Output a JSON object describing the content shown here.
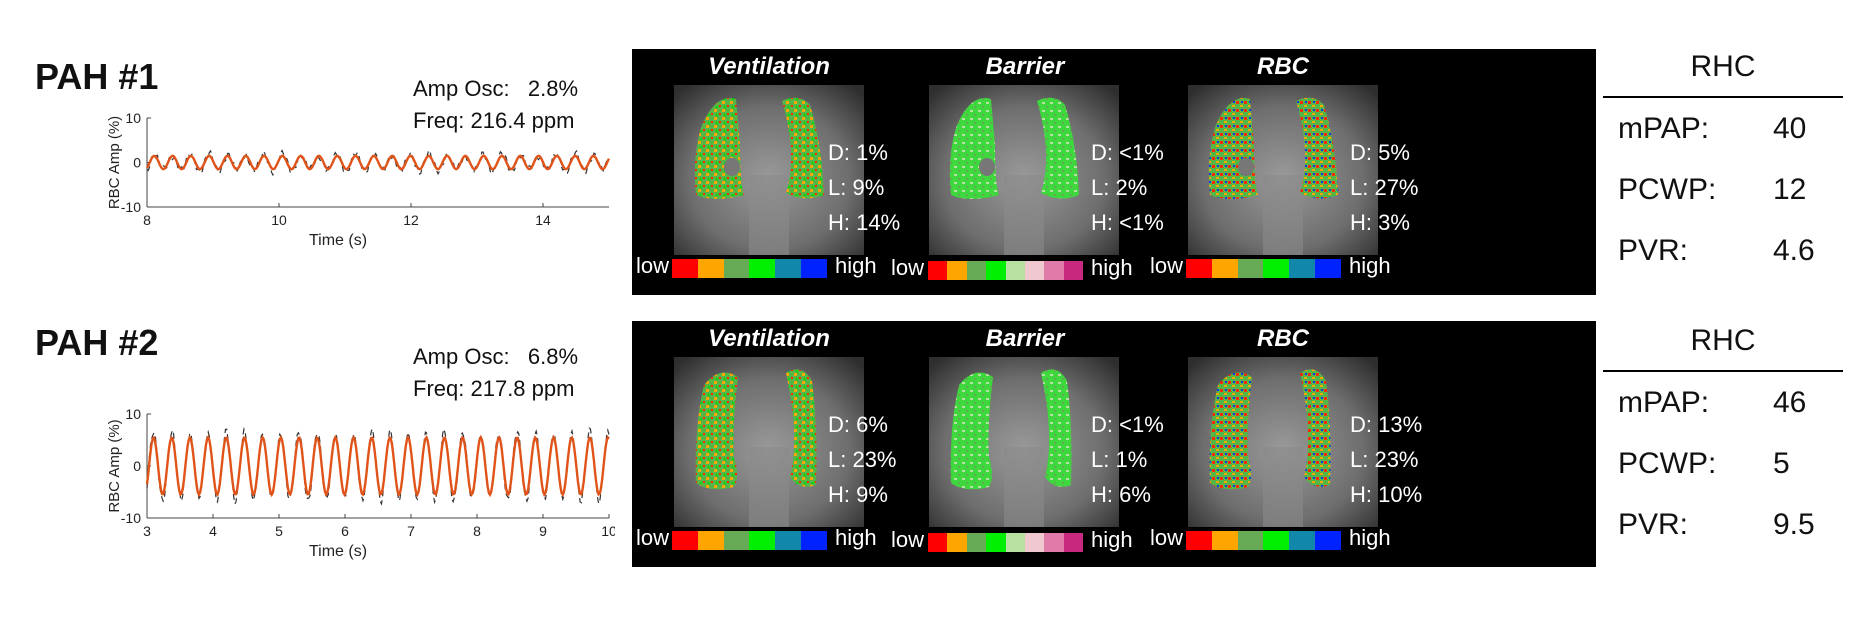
{
  "rows": [
    {
      "patient": "PAH #1",
      "amp_osc_label": "Amp Osc:",
      "amp_osc_value": "2.8%",
      "freq_label": "Freq:",
      "freq_value": "216.4 ppm",
      "plot": {
        "type": "line",
        "xlabel": "Time (s)",
        "ylabel": "RBC Amp (%)",
        "xlim": [
          8,
          15
        ],
        "ylim": [
          -10,
          10
        ],
        "xticks": [
          8,
          10,
          12,
          14
        ],
        "yticks": [
          10,
          0,
          -10
        ],
        "amplitude": 1.5,
        "freq_ppm": 216.4
      },
      "maps": [
        {
          "title": "Ventilation",
          "d": "D: 1%",
          "l": "L: 9%",
          "h": "H: 14%"
        },
        {
          "title": "Barrier",
          "d": "D: <1%",
          "l": "L: 2%",
          "h": "H: <1%"
        },
        {
          "title": "RBC",
          "d": "D: 5%",
          "l": "L: 27%",
          "h": "H: 3%"
        }
      ],
      "rhc": {
        "title": "RHC",
        "items": [
          {
            "label": "mPAP:",
            "value": "40"
          },
          {
            "label": "PCWP:",
            "value": "12"
          },
          {
            "label": "PVR:",
            "value": "4.6"
          }
        ]
      }
    },
    {
      "patient": "PAH #2",
      "amp_osc_label": "Amp Osc:",
      "amp_osc_value": "6.8%",
      "freq_label": "Freq:",
      "freq_value": "217.8 ppm",
      "plot": {
        "type": "line",
        "xlabel": "Time (s)",
        "ylabel": "RBC Amp (%)",
        "xlim": [
          3,
          10
        ],
        "ylim": [
          -10,
          10
        ],
        "xticks": [
          3,
          4,
          5,
          6,
          7,
          8,
          9,
          10
        ],
        "yticks": [
          10,
          0,
          -10
        ],
        "amplitude": 5.5,
        "freq_ppm": 217.8
      },
      "maps": [
        {
          "title": "Ventilation",
          "d": "D: 6%",
          "l": "L: 23%",
          "h": "H: 9%"
        },
        {
          "title": "Barrier",
          "d": "D: <1%",
          "l": "L: 1%",
          "h": "H: 6%"
        },
        {
          "title": "RBC",
          "d": "D: 13%",
          "l": "L: 23%",
          "h": "H: 10%"
        }
      ],
      "rhc": {
        "title": "RHC",
        "items": [
          {
            "label": "mPAP:",
            "value": "46"
          },
          {
            "label": "PCWP:",
            "value": "5"
          },
          {
            "label": "PVR:",
            "value": "9.5"
          }
        ]
      }
    }
  ],
  "colorbar": {
    "low": "low",
    "high": "high",
    "six_bin": [
      "#ff0000",
      "#ffa500",
      "#66aa55",
      "#00ee00",
      "#1188aa",
      "#0022ff"
    ],
    "eight_bin": [
      "#ff0000",
      "#ffa500",
      "#66aa55",
      "#00ee00",
      "#b8e0a0",
      "#f0c8d0",
      "#e07aa8",
      "#c8287e"
    ]
  },
  "colors": {
    "fit_line": "#e0541a",
    "data_line": "#333333"
  }
}
